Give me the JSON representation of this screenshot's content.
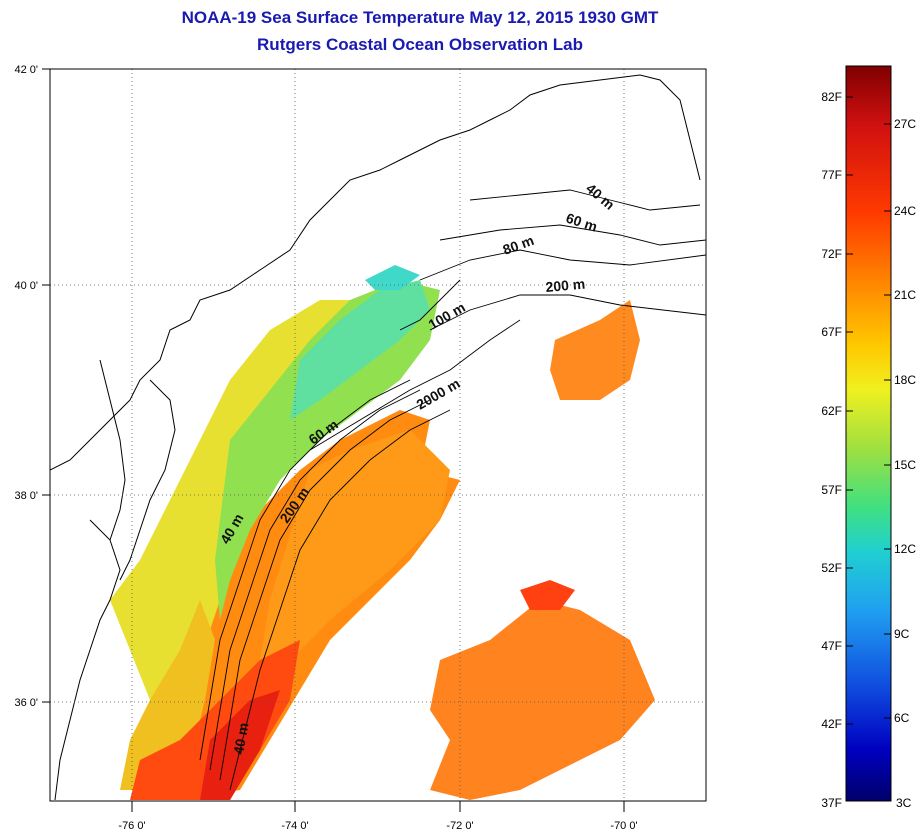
{
  "title": "NOAA-19 Sea Surface Temperature May 12, 2015 1930 GMT",
  "subtitle": "Rutgers Coastal Ocean Observation Lab",
  "map": {
    "lon_labels": [
      "-76 0'",
      "-74 0'",
      "-72 0'",
      "-70 0'"
    ],
    "lat_labels": [
      "42 0'",
      "40 0'",
      "38 0'",
      "36 0'"
    ],
    "grid": true,
    "contour_labels": [
      "40 m",
      "60 m",
      "80 m",
      "200 m",
      "100 m",
      "2000 m",
      "60 m",
      "40 m",
      "200 m",
      "40 m"
    ]
  },
  "colorbar": {
    "fahrenheit_labels": [
      "82F",
      "77F",
      "72F",
      "67F",
      "62F",
      "57F",
      "52F",
      "47F",
      "42F",
      "37F"
    ],
    "celsius_labels": [
      "27C",
      "24C",
      "21C",
      "18C",
      "15C",
      "12C",
      "9C",
      "6C",
      "3C"
    ],
    "colors": [
      "#800000",
      "#d01010",
      "#ff3a00",
      "#ff8a00",
      "#ffc800",
      "#f0f020",
      "#a0e040",
      "#40e080",
      "#20d0d0",
      "#20a0f0",
      "#1050e0",
      "#0000c0",
      "#00006a"
    ]
  }
}
